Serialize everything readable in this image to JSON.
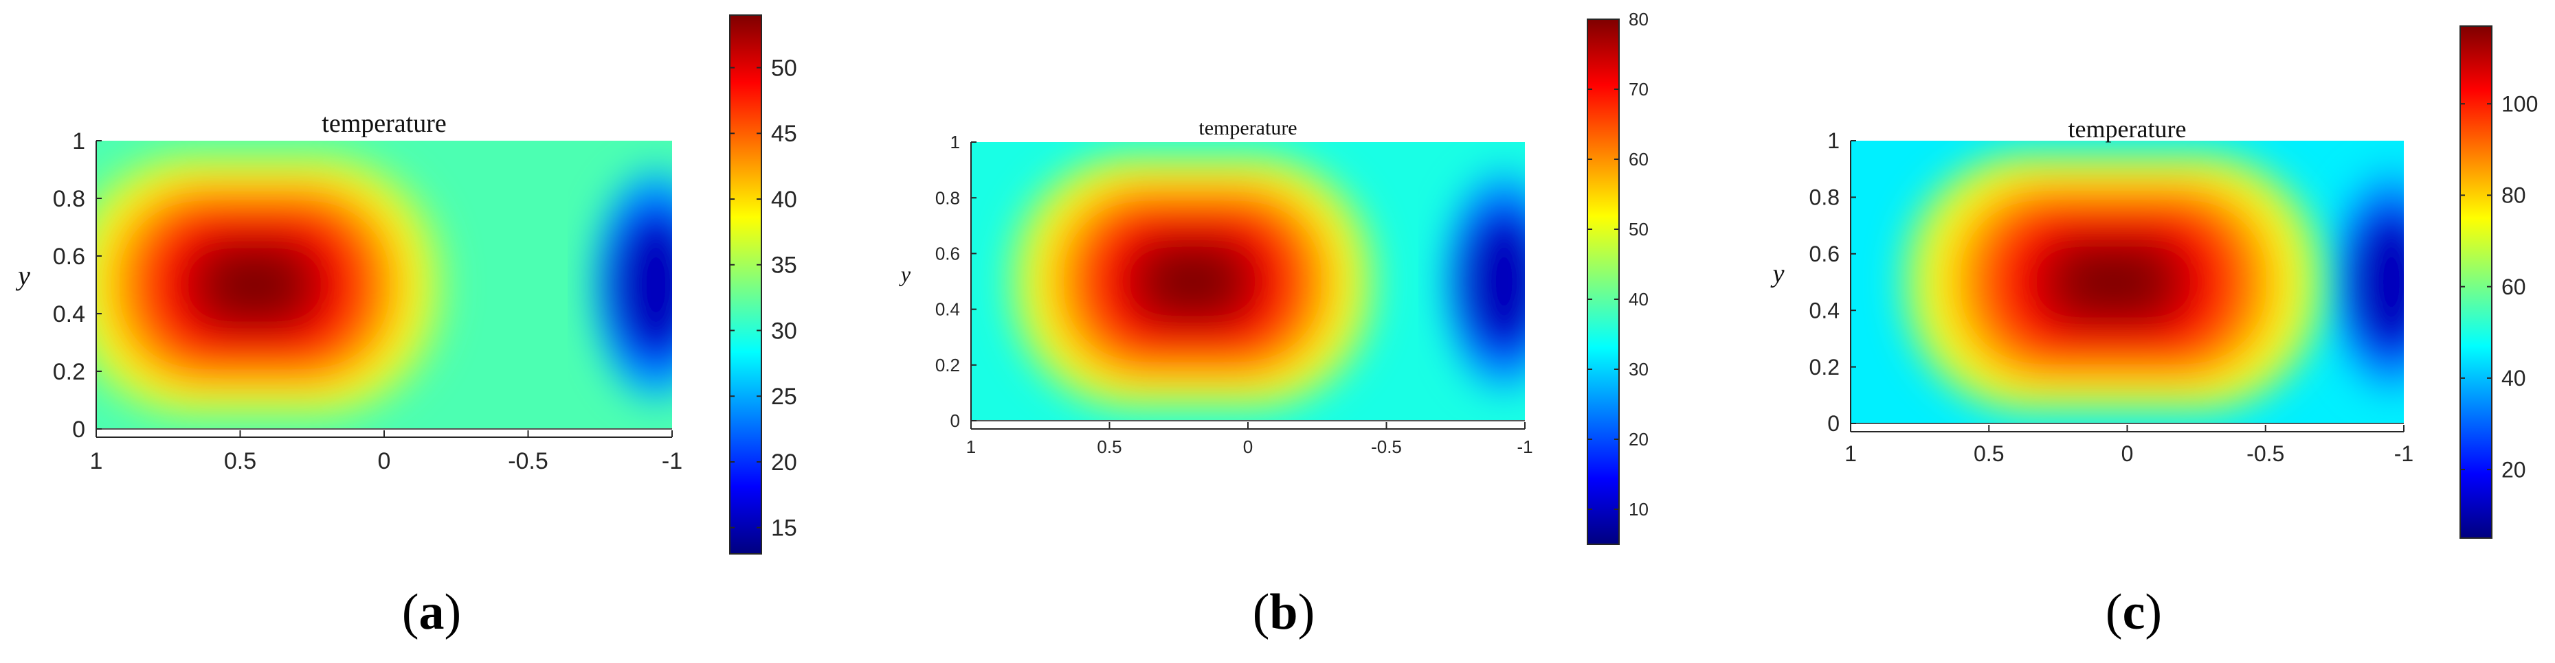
{
  "captions": [
    {
      "open": "(",
      "letter": "a",
      "close": ")"
    },
    {
      "open": "(",
      "letter": "b",
      "close": ")"
    },
    {
      "open": "(",
      "letter": "c",
      "close": ")"
    }
  ],
  "chart_data": [
    {
      "type": "heatmap",
      "title": "temperature",
      "ylabel": "y",
      "xlabel": "",
      "x_direction": "reversed",
      "xlim": [
        1,
        -1
      ],
      "ylim": [
        0,
        1
      ],
      "x_ticks": [
        "1",
        "0.5",
        "0",
        "-0.5",
        "-1"
      ],
      "y_ticks": [
        "0",
        "0.2",
        "0.4",
        "0.6",
        "0.8",
        "1"
      ],
      "colormap": "jet",
      "colorbar_range": [
        13,
        54
      ],
      "colorbar_ticks": [
        "15",
        "20",
        "25",
        "30",
        "35",
        "40",
        "45",
        "50"
      ],
      "hotspot": {
        "x": 0.45,
        "y": 0.5,
        "value": 54
      },
      "coldspot": {
        "x": -0.92,
        "y": 0.5,
        "value": 13
      }
    },
    {
      "type": "heatmap",
      "title": "temperature",
      "ylabel": "y",
      "xlabel": "",
      "x_direction": "reversed",
      "xlim": [
        1,
        -1
      ],
      "ylim": [
        0,
        1
      ],
      "x_ticks": [
        "1",
        "0.5",
        "0",
        "-0.5",
        "-1"
      ],
      "y_ticks": [
        "0",
        "0.2",
        "0.4",
        "0.6",
        "0.8",
        "1"
      ],
      "colormap": "jet",
      "colorbar_range": [
        5,
        80
      ],
      "colorbar_ticks": [
        "10",
        "20",
        "30",
        "40",
        "50",
        "60",
        "70",
        "80"
      ],
      "hotspot": {
        "x": 0.2,
        "y": 0.5,
        "value": 80
      },
      "coldspot": {
        "x": -0.9,
        "y": 0.5,
        "value": 5
      }
    },
    {
      "type": "heatmap",
      "title": "temperature",
      "ylabel": "y",
      "xlabel": "",
      "x_direction": "reversed",
      "xlim": [
        1,
        -1
      ],
      "ylim": [
        0,
        1
      ],
      "x_ticks": [
        "1",
        "0.5",
        "0",
        "-0.5",
        "-1"
      ],
      "y_ticks": [
        "0",
        "0.2",
        "0.4",
        "0.6",
        "0.8",
        "1"
      ],
      "colormap": "jet",
      "colorbar_range": [
        5,
        117
      ],
      "colorbar_ticks": [
        "20",
        "40",
        "60",
        "80",
        "100"
      ],
      "hotspot": {
        "x": 0.05,
        "y": 0.5,
        "value": 117
      },
      "coldspot": {
        "x": -0.93,
        "y": 0.5,
        "value": 5
      }
    }
  ]
}
